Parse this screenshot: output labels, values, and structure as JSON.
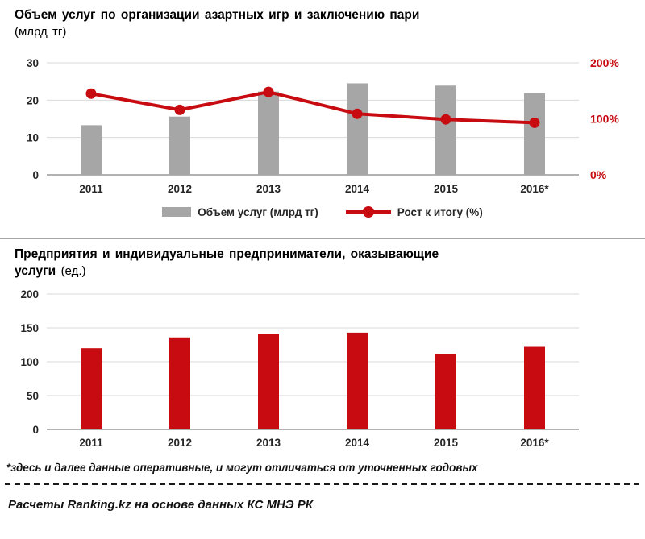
{
  "notes": {
    "footnote": "*здесь и далее данные оперативные, и могут отличаться от уточненных годовых",
    "source": "Расчеты Ranking.kz на основе данных КС МНЭ РК"
  },
  "colors": {
    "bar_gray": "#a6a6a6",
    "accent_red": "#c80b10",
    "gridline": "#d9d9d9",
    "axis_line": "#999999",
    "tick_text": "#262626"
  },
  "chart_data": [
    {
      "type": "bar",
      "subtype": "combo bar+line, line on secondary axis",
      "title": "Объем услуг по организации азартных игр и заключению пари",
      "unit": "(млрд тг)",
      "categories": [
        "2011",
        "2012",
        "2013",
        "2014",
        "2015",
        "2016*"
      ],
      "series": [
        {
          "name": "Объем услуг (млрд тг)",
          "type": "bar",
          "axis": "left",
          "color": "#a6a6a6",
          "values": [
            13.3,
            15.6,
            22.3,
            24.5,
            23.9,
            21.9
          ]
        },
        {
          "name": "Рост к итогу (%)",
          "type": "line",
          "axis": "right",
          "color": "#c80b10",
          "values": [
            145,
            116,
            148,
            109,
            99,
            93
          ]
        }
      ],
      "left_axis": {
        "min": 0,
        "max": 30,
        "ticks": [
          0,
          10,
          20,
          30
        ]
      },
      "right_axis": {
        "min": 0,
        "max": 200,
        "ticks": [
          0,
          100,
          200
        ],
        "suffix": "%"
      },
      "legend_position": "bottom",
      "grid": true
    },
    {
      "type": "bar",
      "title_line1": "Предприятия и индивидуальные предприниматели, оказывающие",
      "title_line2": "услуги",
      "unit": "(ед.)",
      "categories": [
        "2011",
        "2012",
        "2013",
        "2014",
        "2015",
        "2016*"
      ],
      "series": [
        {
          "type": "bar",
          "axis": "left",
          "color": "#c80b10",
          "values": [
            120,
            136,
            141,
            143,
            111,
            122
          ]
        }
      ],
      "left_axis": {
        "min": 0,
        "max": 200,
        "ticks": [
          0,
          50,
          100,
          150,
          200
        ]
      },
      "legend_position": "none",
      "grid": true
    }
  ]
}
